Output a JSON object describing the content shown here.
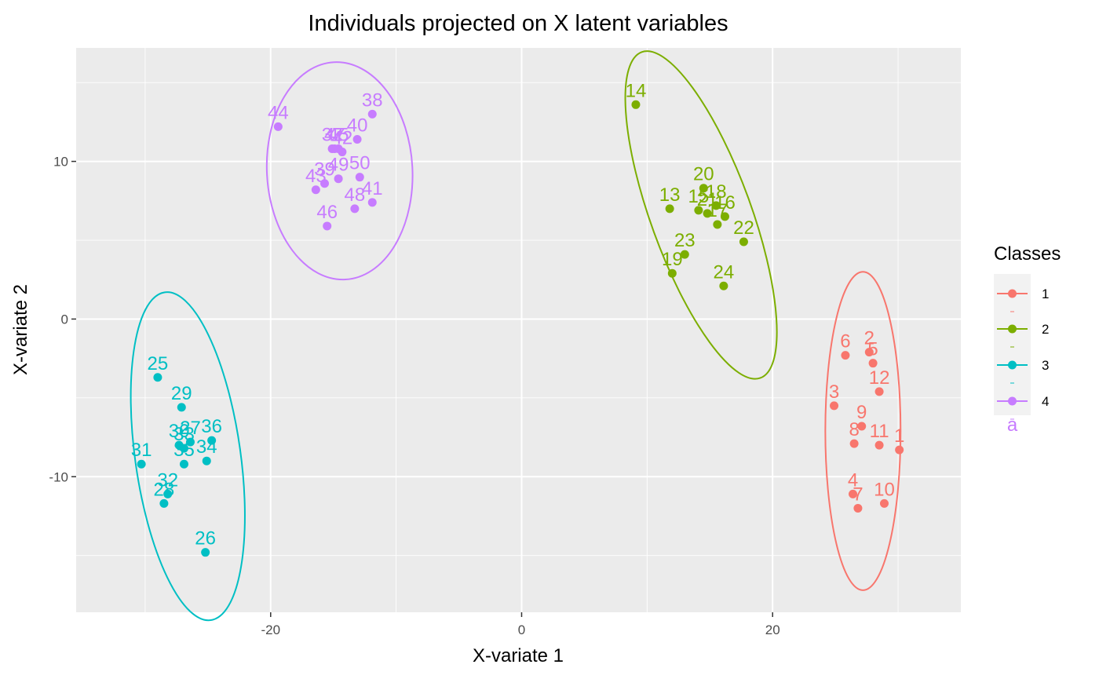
{
  "chart_data": {
    "type": "scatter",
    "title": "Individuals projected on X latent variables",
    "xlabel": "X-variate 1",
    "ylabel": "X-variate  2",
    "xlim": [
      -35.5,
      35
    ],
    "ylim": [
      -18.6,
      17.2
    ],
    "x_ticks": [
      -20,
      0,
      20
    ],
    "x_tick_labels": [
      "-20",
      "0",
      "20"
    ],
    "y_ticks": [
      -10,
      0,
      10
    ],
    "y_tick_labels": [
      "-10",
      "0",
      "10"
    ],
    "grid": true,
    "background": "#ebebeb",
    "legend": {
      "title": "Classes",
      "placement": "right",
      "key_letter": "a",
      "entries": [
        "1",
        "2",
        "3",
        "4"
      ]
    },
    "series": [
      {
        "name": "1",
        "color": "#f8766d",
        "points": [
          {
            "label": "1",
            "x": 30.1,
            "y": -8.3
          },
          {
            "label": "2",
            "x": 27.7,
            "y": -2.1
          },
          {
            "label": "3",
            "x": 24.9,
            "y": -5.5
          },
          {
            "label": "4",
            "x": 26.4,
            "y": -11.1
          },
          {
            "label": "5",
            "x": 28.0,
            "y": -2.8
          },
          {
            "label": "6",
            "x": 25.8,
            "y": -2.3
          },
          {
            "label": "7",
            "x": 26.8,
            "y": -12.0
          },
          {
            "label": "8",
            "x": 26.5,
            "y": -7.9
          },
          {
            "label": "9",
            "x": 27.1,
            "y": -6.8
          },
          {
            "label": "10",
            "x": 28.9,
            "y": -11.7
          },
          {
            "label": "11",
            "x": 28.5,
            "y": -8.0
          },
          {
            "label": "12",
            "x": 28.5,
            "y": -4.6
          }
        ],
        "ellipse": {
          "cx": 27.2,
          "cy": -7.1,
          "rx": 3.0,
          "ry": 10.1,
          "angle": 0
        }
      },
      {
        "name": "2",
        "color": "#7cae00",
        "points": [
          {
            "label": "13",
            "x": 11.8,
            "y": 7.0
          },
          {
            "label": "14",
            "x": 9.1,
            "y": 13.6
          },
          {
            "label": "15",
            "x": 14.1,
            "y": 6.9
          },
          {
            "label": "16",
            "x": 16.2,
            "y": 6.5
          },
          {
            "label": "17",
            "x": 15.6,
            "y": 6.0
          },
          {
            "label": "18",
            "x": 15.5,
            "y": 7.2
          },
          {
            "label": "19",
            "x": 12.0,
            "y": 2.9
          },
          {
            "label": "20",
            "x": 14.5,
            "y": 8.3
          },
          {
            "label": "21",
            "x": 14.8,
            "y": 6.7
          },
          {
            "label": "22",
            "x": 17.7,
            "y": 4.9
          },
          {
            "label": "23",
            "x": 13.0,
            "y": 4.1
          },
          {
            "label": "24",
            "x": 16.1,
            "y": 2.1
          }
        ],
        "ellipse": {
          "cx": 14.3,
          "cy": 6.6,
          "rx": 4.0,
          "ry": 11.0,
          "angle": -20
        }
      },
      {
        "name": "3",
        "color": "#00bfc4",
        "points": [
          {
            "label": "25",
            "x": -29.0,
            "y": -3.7
          },
          {
            "label": "26",
            "x": -25.2,
            "y": -14.8
          },
          {
            "label": "27",
            "x": -26.4,
            "y": -7.8
          },
          {
            "label": "28",
            "x": -28.5,
            "y": -11.7
          },
          {
            "label": "29",
            "x": -27.1,
            "y": -5.6
          },
          {
            "label": "30",
            "x": -27.3,
            "y": -8.0
          },
          {
            "label": "31",
            "x": -30.3,
            "y": -9.2
          },
          {
            "label": "32",
            "x": -28.2,
            "y": -11.1
          },
          {
            "label": "33",
            "x": -26.9,
            "y": -8.2
          },
          {
            "label": "34",
            "x": -25.1,
            "y": -9.0
          },
          {
            "label": "35",
            "x": -26.9,
            "y": -9.2
          },
          {
            "label": "36",
            "x": -24.7,
            "y": -7.7
          }
        ],
        "ellipse": {
          "cx": -26.6,
          "cy": -8.7,
          "rx": 4.2,
          "ry": 10.5,
          "angle": -8
        }
      },
      {
        "name": "4",
        "color": "#c77cff",
        "points": [
          {
            "label": "37",
            "x": -15.1,
            "y": 10.8
          },
          {
            "label": "38",
            "x": -11.9,
            "y": 13.0
          },
          {
            "label": "39",
            "x": -15.7,
            "y": 8.6
          },
          {
            "label": "40",
            "x": -13.1,
            "y": 11.4
          },
          {
            "label": "41",
            "x": -11.9,
            "y": 7.4
          },
          {
            "label": "42",
            "x": -14.3,
            "y": 10.6
          },
          {
            "label": "43",
            "x": -16.4,
            "y": 8.2
          },
          {
            "label": "44",
            "x": -19.4,
            "y": 12.2
          },
          {
            "label": "45",
            "x": -14.6,
            "y": 10.8
          },
          {
            "label": "46",
            "x": -15.5,
            "y": 5.9
          },
          {
            "label": "47",
            "x": -14.9,
            "y": 10.8
          },
          {
            "label": "48",
            "x": -13.3,
            "y": 7.0
          },
          {
            "label": "49",
            "x": -14.6,
            "y": 8.9
          },
          {
            "label": "50",
            "x": -12.9,
            "y": 9.0
          }
        ],
        "ellipse": {
          "cx": -14.5,
          "cy": 9.4,
          "rx": 5.8,
          "ry": 6.9,
          "angle": -3
        }
      }
    ]
  }
}
